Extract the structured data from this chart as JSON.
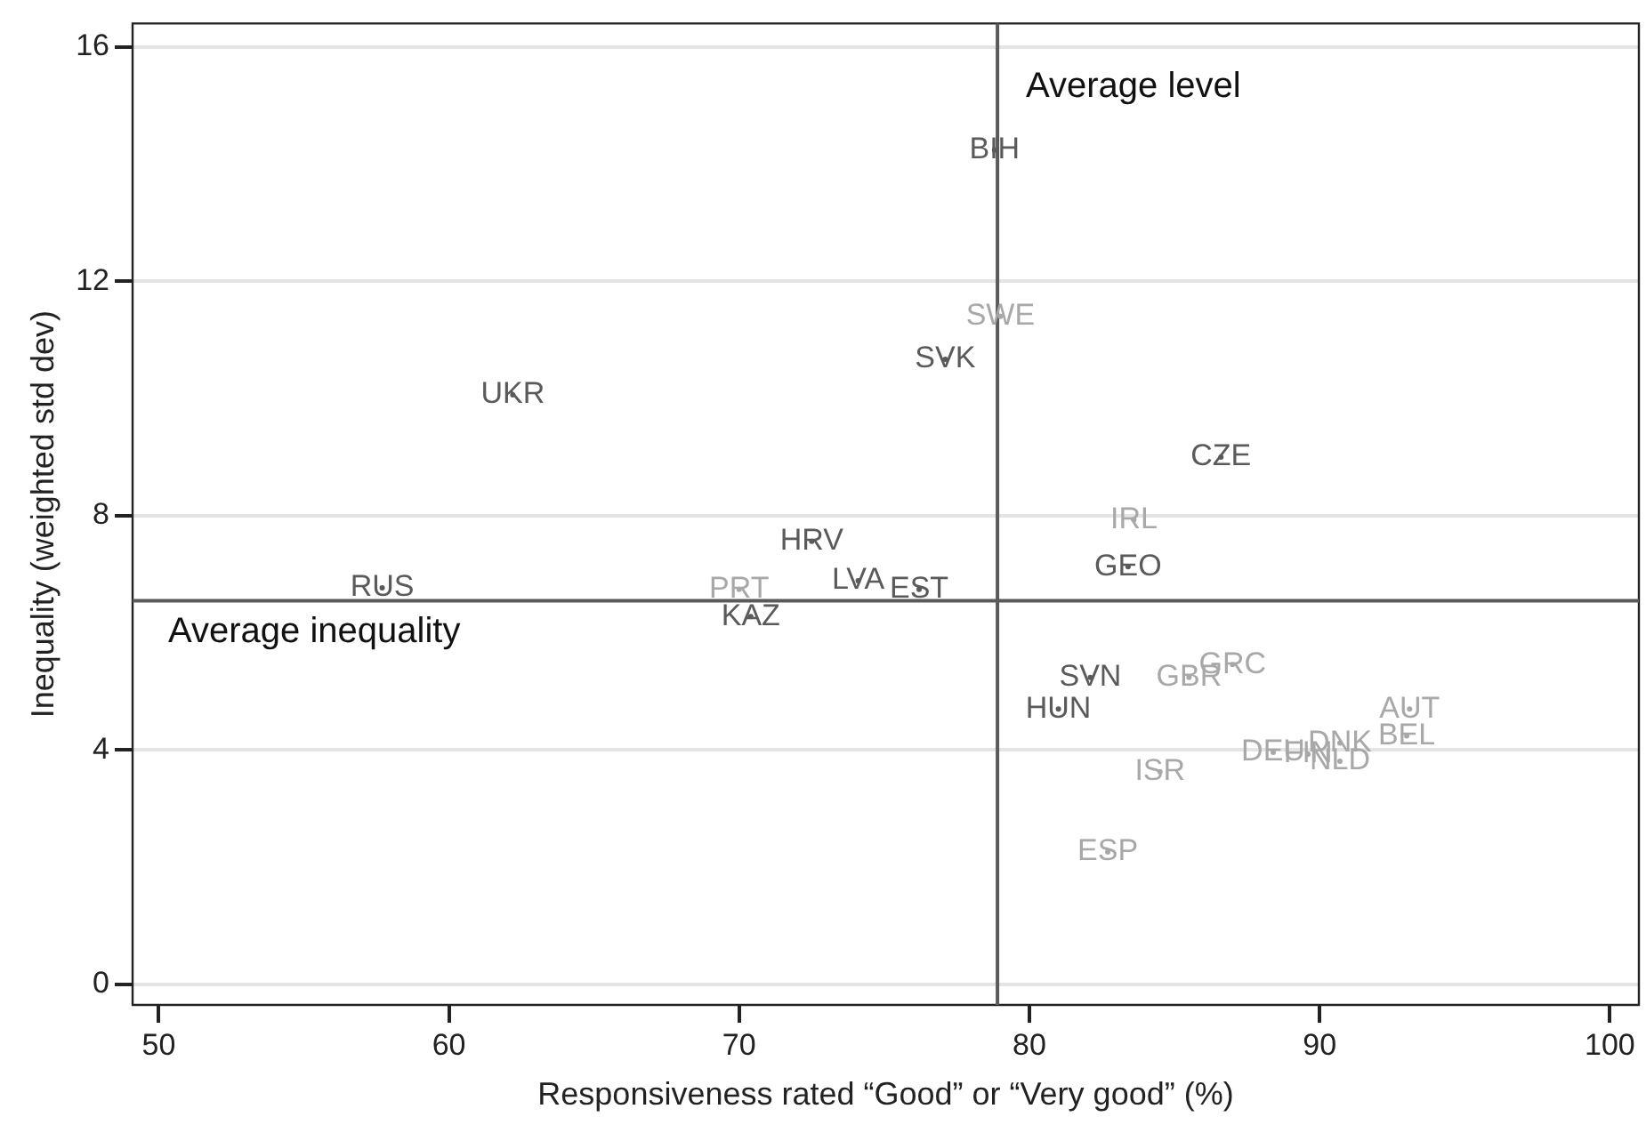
{
  "chart_data": {
    "type": "scatter",
    "xlabel": "Responsiveness rated “Good” or “Very good” (%)",
    "ylabel": "Inequality (weighted std dev)",
    "xlim": [
      49.1,
      101
    ],
    "xticks": [
      50,
      60,
      70,
      80,
      90,
      100
    ],
    "ylim": [
      -0.35,
      16.4
    ],
    "yticks": [
      0,
      4,
      8,
      12,
      16
    ],
    "grid": "y",
    "legend": false,
    "ref_lines": [
      {
        "axis": "x",
        "value": 78.9,
        "label": "Average level",
        "color": "#5a5a5a"
      },
      {
        "axis": "y",
        "value": 6.55,
        "label": "Average inequality",
        "color": "#5a5a5a"
      }
    ],
    "series": [
      {
        "type": "scatter",
        "color": "#5a5a5a",
        "x": [
          62.2,
          57.7,
          70.4,
          72.5,
          74.1,
          76.2,
          78.8,
          77.1,
          86.6,
          83.4,
          82.1,
          81.0
        ],
        "values": [
          10.06,
          6.77,
          6.28,
          7.56,
          6.89,
          6.74,
          14.24,
          10.67,
          9.0,
          7.13,
          5.24,
          4.7
        ],
        "value_labels": [
          "UKR",
          "RUS",
          "KAZ",
          "HRV",
          "LVA",
          "EST",
          "BIH",
          "SVK",
          "CZE",
          "GEO",
          "SVN",
          "HUN"
        ]
      },
      {
        "type": "scatter",
        "color": "#a8a8a8",
        "x": [
          70.0,
          79.0,
          83.6,
          85.5,
          87.0,
          93.1,
          93.0,
          88.4,
          89.6,
          90.7,
          90.7,
          84.5,
          82.7
        ],
        "values": [
          6.74,
          11.4,
          7.93,
          5.24,
          5.46,
          4.7,
          4.24,
          3.96,
          3.93,
          4.12,
          3.81,
          3.63,
          2.26
        ],
        "value_labels": [
          "PRT",
          "SWE",
          "IRL",
          "GBR",
          "GRC",
          "AUT",
          "BEL",
          "DEU",
          "FIN",
          "DNK",
          "NLD",
          "ISR",
          "ESP"
        ]
      }
    ]
  }
}
